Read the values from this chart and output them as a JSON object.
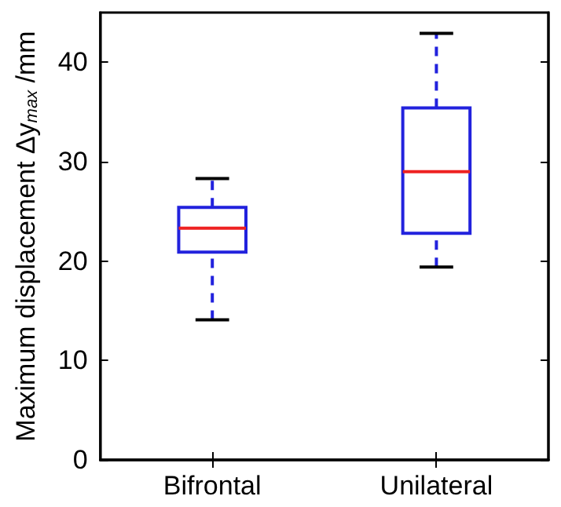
{
  "chart_data": {
    "type": "box",
    "ylabel": "Maximum displacement Δy$_{max}$ /mm",
    "categories": [
      "Bifrontal",
      "Unilateral"
    ],
    "series": [
      {
        "color": "#2222dd",
        "boxes": [
          {
            "low": 14.1,
            "q1": 20.9,
            "median": 23.3,
            "q3": 25.4,
            "high": 28.3
          },
          {
            "low": 19.4,
            "q1": 22.8,
            "median": 29.0,
            "q3": 35.4,
            "high": 42.9
          }
        ]
      }
    ],
    "ylim": [
      0,
      45
    ],
    "yticks": [
      0,
      10,
      20,
      30,
      40
    ],
    "grid": false
  }
}
